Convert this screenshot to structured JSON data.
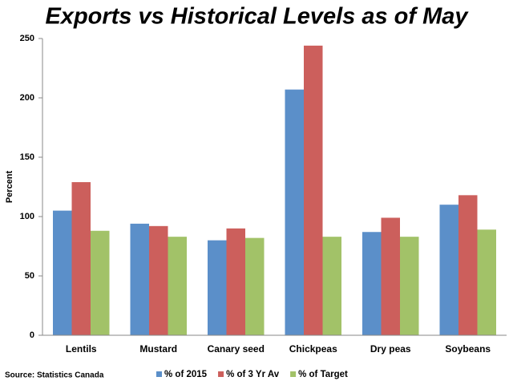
{
  "chart_data": {
    "type": "bar",
    "title": "Exports vs Historical Levels as of May",
    "y_label": "Percent",
    "source": "Source: Statistics Canada",
    "categories": [
      "Lentils",
      "Mustard",
      "Canary seed",
      "Chickpeas",
      "Dry peas",
      "Soybeans"
    ],
    "series": [
      {
        "name": "% of 2015",
        "color": "#5b8fc9",
        "values": [
          105,
          94,
          80,
          207,
          87,
          110
        ]
      },
      {
        "name": "% of 3 Yr Av",
        "color": "#cc5f5c",
        "values": [
          129,
          92,
          90,
          244,
          99,
          118
        ]
      },
      {
        "name": "% of Target",
        "color": "#a2c268",
        "values": [
          88,
          83,
          82,
          83,
          83,
          89
        ]
      }
    ],
    "ylim": [
      0,
      250
    ],
    "yticks": [
      0,
      50,
      100,
      150,
      200,
      250
    ],
    "grid": false,
    "legend": "bottom"
  }
}
